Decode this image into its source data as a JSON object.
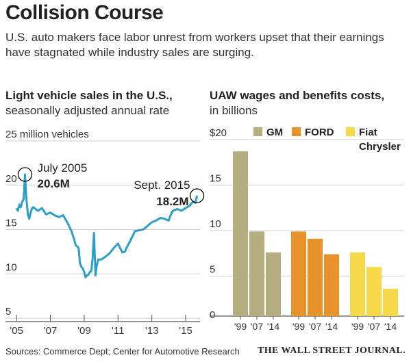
{
  "headline": "Collision Course",
  "dek": "U.S. auto makers face labor unrest from workers upset that their earnings have stagnated while industry sales are surging.",
  "source": "Sources: Commerce Dept; Center for Automotive Research",
  "credit": "THE WALL STREET JOURNAL.",
  "colors": {
    "line": "#2b9fc7",
    "gm": "#b5ad7f",
    "ford": "#e8922c",
    "fiat": "#f6d84a",
    "grid": "#cfcfcf",
    "axis": "#555555"
  },
  "chart_data": [
    {
      "type": "line",
      "title": "Light vehicle sales in the U.S.,",
      "subtitle": "seasonally adjusted annual rate",
      "unit_label": "25 million vehicles",
      "ylim": [
        4,
        25
      ],
      "xlim": [
        2004.75,
        2015.85
      ],
      "yticks": [
        5,
        10,
        15,
        20
      ],
      "xticks": [
        {
          "value": 2005,
          "label": "'05"
        },
        {
          "value": 2007,
          "label": "'07"
        },
        {
          "value": 2009,
          "label": "'09"
        },
        {
          "value": 2011,
          "label": "'11"
        },
        {
          "value": 2013,
          "label": "'13"
        },
        {
          "value": 2015,
          "label": "'15"
        }
      ],
      "series": [
        {
          "x": [
            2005.0,
            2005.08,
            2005.17,
            2005.25,
            2005.33,
            2005.42,
            2005.5,
            2005.58,
            2005.67,
            2005.75,
            2005.83,
            2005.92,
            2006.0,
            2006.25,
            2006.5,
            2006.75,
            2007.0,
            2007.25,
            2007.5,
            2007.75,
            2008.0,
            2008.25,
            2008.42,
            2008.5,
            2008.58,
            2008.67,
            2008.75,
            2008.83,
            2008.92,
            2009.0,
            2009.08,
            2009.17,
            2009.25,
            2009.33,
            2009.42,
            2009.5,
            2009.58,
            2009.67,
            2009.75,
            2009.83,
            2010.0,
            2010.25,
            2010.5,
            2010.75,
            2011.0,
            2011.25,
            2011.42,
            2011.5,
            2011.75,
            2012.0,
            2012.25,
            2012.5,
            2012.75,
            2013.0,
            2013.25,
            2013.5,
            2013.75,
            2014.0,
            2014.08,
            2014.25,
            2014.5,
            2014.75,
            2015.0,
            2015.25,
            2015.42,
            2015.58,
            2015.67
          ],
          "y": [
            16.8,
            16.5,
            17.2,
            16.9,
            17.5,
            17.8,
            20.6,
            17.9,
            16.1,
            15.6,
            16.3,
            16.8,
            16.9,
            16.5,
            16.8,
            16.1,
            16.3,
            16.0,
            15.8,
            16.0,
            15.2,
            14.2,
            13.2,
            12.6,
            12.5,
            12.3,
            10.6,
            10.2,
            10.0,
            9.6,
            9.0,
            9.2,
            9.3,
            9.6,
            9.7,
            11.2,
            14.0,
            9.2,
            10.4,
            11.0,
            11.0,
            11.3,
            11.7,
            12.3,
            12.8,
            11.8,
            11.9,
            12.3,
            13.2,
            14.2,
            14.3,
            14.4,
            14.8,
            15.2,
            15.4,
            15.7,
            15.6,
            15.4,
            15.9,
            16.5,
            16.7,
            16.5,
            16.8,
            17.1,
            17.5,
            17.4,
            18.2
          ]
        }
      ],
      "annotations": [
        {
          "x": 2005.5,
          "y": 20.6,
          "label": "July 2005",
          "value": "20.6M"
        },
        {
          "x": 2015.67,
          "y": 18.2,
          "label": "Sept. 2015",
          "value": "18.2M"
        }
      ]
    },
    {
      "type": "bar",
      "title": "UAW wages and benefits costs,",
      "subtitle": "in billions",
      "ylim": [
        0,
        20
      ],
      "yticks": [
        {
          "value": 0,
          "label": "0"
        },
        {
          "value": 5,
          "label": "5"
        },
        {
          "value": 10,
          "label": "10"
        },
        {
          "value": 15,
          "label": "15"
        },
        {
          "value": 20,
          "label": "$20"
        }
      ],
      "series": [
        {
          "name": "GM",
          "color_key": "gm",
          "categories": [
            "'99",
            "'07",
            "'14"
          ],
          "values": [
            18.1,
            9.3,
            7.0
          ]
        },
        {
          "name": "FORD",
          "color_key": "ford",
          "categories": [
            "'99",
            "'07",
            "'14"
          ],
          "values": [
            9.3,
            8.5,
            6.8
          ]
        },
        {
          "name": "Fiat Chrysler",
          "legend_lines": [
            "Fiat",
            "Chrysler"
          ],
          "color_key": "fiat",
          "categories": [
            "'99",
            "'07",
            "'14"
          ],
          "values": [
            7.0,
            5.4,
            3.0
          ]
        }
      ]
    }
  ]
}
